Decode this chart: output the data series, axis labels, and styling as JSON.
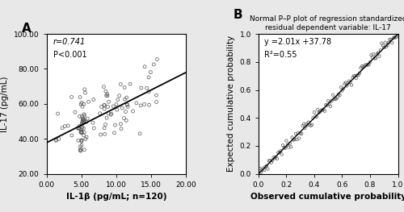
{
  "panel_A": {
    "label": "A",
    "xlabel": "IL-1β (pg/mL; n=120)",
    "ylabel": "IL-17 (pg/mL)",
    "xlim": [
      0.0,
      20.0
    ],
    "ylim": [
      20.0,
      100.0
    ],
    "xticks": [
      0.0,
      5.0,
      10.0,
      15.0,
      20.0
    ],
    "yticks": [
      20.0,
      40.0,
      60.0,
      80.0,
      100.0
    ],
    "annotation_r": "r=0.741",
    "annotation_p": "P<0.001",
    "regression_slope": 2.01,
    "regression_intercept": 37.78,
    "scatter_color": "none",
    "scatter_edgecolor": "#555555",
    "scatter_size": 8,
    "line_color": "#000000"
  },
  "panel_B": {
    "label": "B",
    "title_line1": "Normal P–P plot of regression standardized",
    "title_line2": "residual dependent variable: IL-17",
    "xlabel": "Observed cumulative probability",
    "ylabel": "Expected cumulative probability",
    "xlim": [
      0.0,
      1.0
    ],
    "ylim": [
      0.0,
      1.0
    ],
    "xticks": [
      0.0,
      0.2,
      0.4,
      0.6,
      0.8,
      1.0
    ],
    "yticks": [
      0.0,
      0.2,
      0.4,
      0.6,
      0.8,
      1.0
    ],
    "annotation_line1": "y =2.01x +37.78",
    "annotation_line2": "R²=0.55",
    "scatter_color": "none",
    "scatter_edgecolor": "#555555",
    "scatter_size": 6,
    "line_color": "#000000",
    "n_points": 120
  },
  "figure_bgcolor": "#e8e8e8",
  "axes_bgcolor": "#ffffff"
}
